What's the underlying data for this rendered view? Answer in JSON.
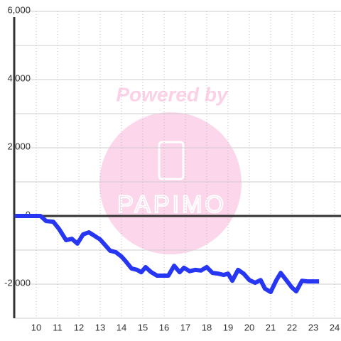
{
  "chart_data": {
    "type": "line",
    "watermark": {
      "top": "Powered by",
      "logo": "PAPIMO"
    },
    "x": [
      9,
      10.2,
      10.47,
      10.8,
      11.07,
      11.4,
      11.67,
      11.93,
      12.2,
      12.47,
      12.73,
      13,
      13.2,
      13.47,
      13.73,
      14,
      14.2,
      14.47,
      14.73,
      14.93,
      15.13,
      15.4,
      15.67,
      15.93,
      16.2,
      16.47,
      16.73,
      16.93,
      17.2,
      17.47,
      17.73,
      18,
      18.27,
      18.53,
      18.8,
      19,
      19.2,
      19.47,
      19.73,
      20,
      20.27,
      20.53,
      20.73,
      21,
      21.27,
      21.47,
      21.73,
      22,
      22.2,
      22.47,
      22.73,
      23,
      23.27
    ],
    "series": [
      {
        "color": "#2636f2",
        "values": [
          0,
          0,
          -150,
          -170,
          -380,
          -710,
          -670,
          -810,
          -540,
          -480,
          -580,
          -690,
          -830,
          -1020,
          -1060,
          -1190,
          -1330,
          -1540,
          -1580,
          -1650,
          -1500,
          -1650,
          -1750,
          -1750,
          -1750,
          -1460,
          -1650,
          -1520,
          -1620,
          -1580,
          -1600,
          -1500,
          -1670,
          -1690,
          -1730,
          -1690,
          -1900,
          -1580,
          -1690,
          -1880,
          -1960,
          -1880,
          -2130,
          -2230,
          -1880,
          -1670,
          -1880,
          -2100,
          -2210,
          -1900,
          -1920,
          -1920,
          -1920
        ]
      }
    ],
    "xlim": [
      9,
      24.3
    ],
    "xticks": [
      10,
      11,
      12,
      13,
      14,
      15,
      16,
      17,
      18,
      19,
      20,
      21,
      22,
      23,
      24
    ],
    "ylim": [
      -3000,
      6000
    ],
    "yticks": [
      {
        "value": -2000,
        "label": "-2,000"
      },
      0,
      {
        "value": 2000,
        "label": "2,000"
      },
      {
        "value": 4000,
        "label": "4,000"
      },
      {
        "value": 6000,
        "label": "6,000"
      }
    ],
    "minor_yticks": [
      -3000,
      -1000,
      1000,
      3000,
      5000
    ],
    "grid": true
  }
}
